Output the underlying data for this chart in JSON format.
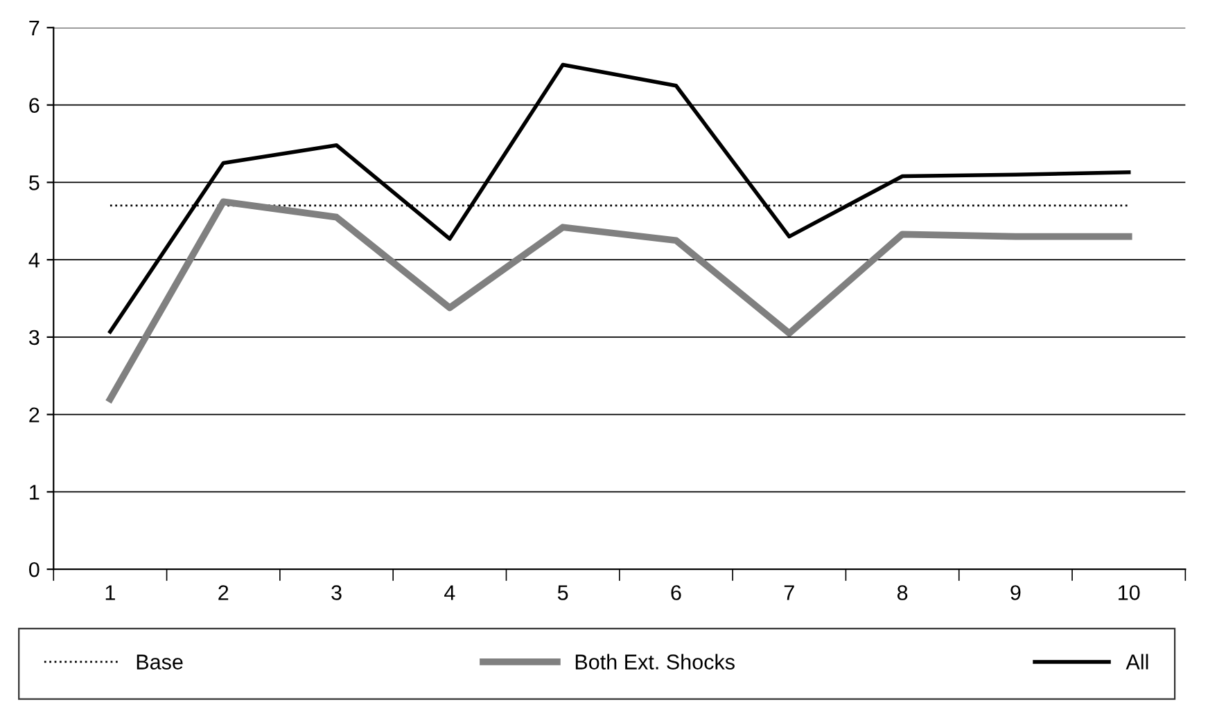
{
  "chart_data": {
    "type": "line",
    "categories": [
      "1",
      "2",
      "3",
      "4",
      "5",
      "6",
      "7",
      "8",
      "9",
      "10"
    ],
    "series": [
      {
        "name": "Base",
        "color": "#000000",
        "line_style": "dotted",
        "values": [
          4.7,
          4.7,
          4.7,
          4.7,
          4.7,
          4.7,
          4.7,
          4.7,
          4.7,
          4.7
        ]
      },
      {
        "name": "Both Ext. Shocks",
        "color": "#808080",
        "line_style": "solid",
        "values": [
          2.2,
          4.75,
          4.55,
          3.38,
          4.42,
          4.25,
          3.05,
          4.33,
          4.3,
          4.3
        ]
      },
      {
        "name": "All",
        "color": "#000000",
        "line_style": "solid",
        "values": [
          3.07,
          5.25,
          5.48,
          4.27,
          6.52,
          6.25,
          4.3,
          5.08,
          5.1,
          5.13
        ]
      }
    ],
    "ylim": [
      0,
      7
    ],
    "yticks": [
      0,
      1,
      2,
      3,
      4,
      5,
      6,
      7
    ],
    "grid": "y",
    "legend": "bottom",
    "marker": "none"
  }
}
